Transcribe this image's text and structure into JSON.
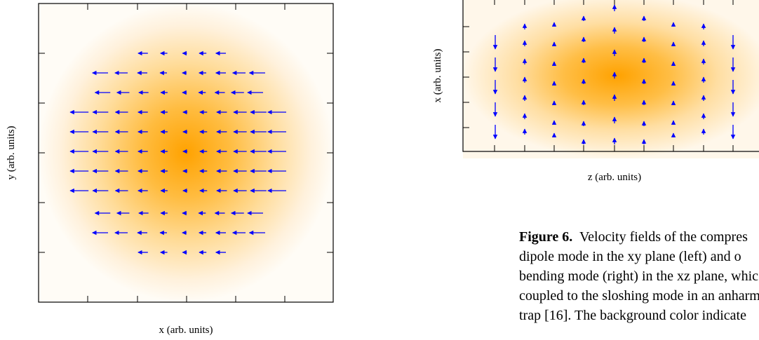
{
  "left_panel": {
    "xlabel": "x (arb. units)",
    "ylabel": "y (arb. units)",
    "arrow_color": "#0000ff",
    "density_color": "#ffa500"
  },
  "right_panel": {
    "xlabel": "z (arb. units)",
    "ylabel": "x (arb. units)",
    "arrow_color": "#0000ff",
    "density_color": "#ffa500"
  },
  "caption": {
    "label": "Figure 6.",
    "lines": [
      "Velocity fields of the compres",
      "dipole mode in the xy plane (left) and o",
      "bending mode (right) in the xz plane, whic",
      "coupled to the sloshing mode in an anharm",
      "trap [16].  The background color indicate"
    ]
  }
}
